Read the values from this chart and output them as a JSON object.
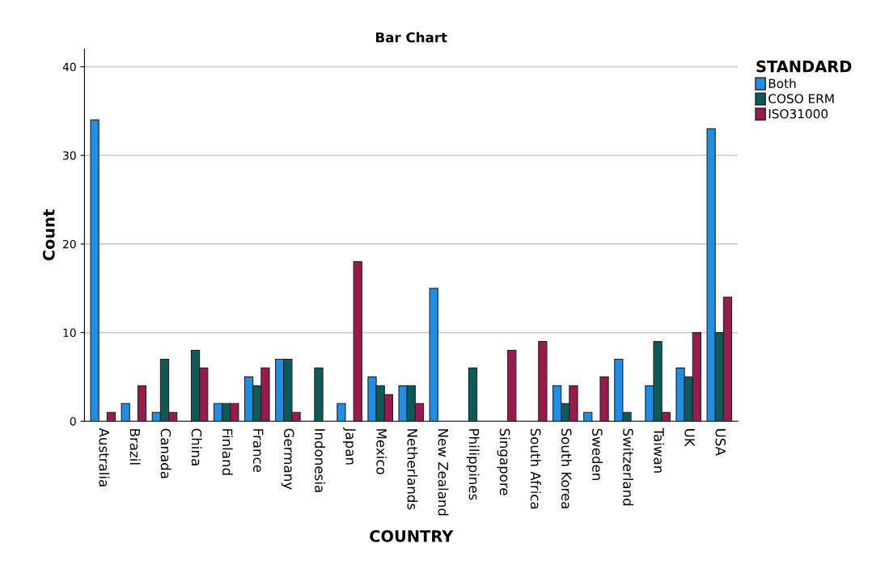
{
  "chart_data": {
    "type": "bar",
    "title": "Bar Chart",
    "xlabel": "COUNTRY",
    "ylabel": "Count",
    "legend_title": "STANDARD",
    "categories": [
      "Australia",
      "Brazil",
      "Canada",
      "China",
      "Finland",
      "France",
      "Germany",
      "Indonesia",
      "Japan",
      "Mexico",
      "Netherlands",
      "New Zealand",
      "Philippines",
      "Singapore",
      "South Africa",
      "South Korea",
      "Sweden",
      "Switzerland",
      "Taiwan",
      "UK",
      "USA"
    ],
    "series": [
      {
        "name": "Both",
        "color": "#1f8ee6",
        "values": [
          34,
          2,
          1,
          null,
          2,
          5,
          7,
          null,
          2,
          5,
          4,
          15,
          null,
          null,
          null,
          4,
          1,
          7,
          4,
          6,
          33
        ]
      },
      {
        "name": "COSO ERM",
        "color": "#0d5b58",
        "values": [
          null,
          null,
          7,
          8,
          2,
          4,
          7,
          6,
          null,
          4,
          4,
          null,
          6,
          null,
          null,
          2,
          null,
          1,
          9,
          5,
          10
        ]
      },
      {
        "name": "ISO31000",
        "color": "#991a4c",
        "values": [
          1,
          4,
          1,
          6,
          2,
          6,
          1,
          null,
          18,
          3,
          2,
          null,
          null,
          8,
          9,
          4,
          5,
          null,
          1,
          10,
          14
        ]
      }
    ],
    "ylim": [
      0,
      42
    ],
    "yticks": [
      0,
      10,
      20,
      30,
      40
    ],
    "grid": "y",
    "legend": "top right"
  }
}
